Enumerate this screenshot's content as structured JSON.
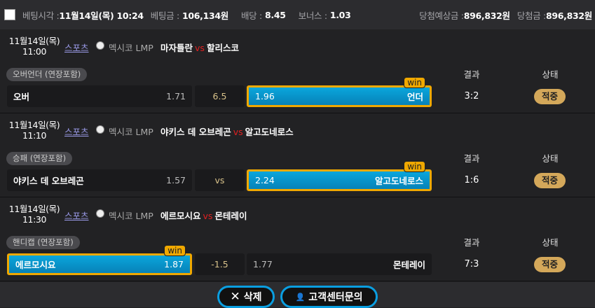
{
  "header": {
    "bet_time_label": "베팅시각 :",
    "bet_time": "11월14일(목) 10:24",
    "bet_amount_label": "베팅금 :",
    "bet_amount": "106,134원",
    "odds_label": "배당 :",
    "odds": "8.45",
    "bonus_label": "보너스 :",
    "bonus": "1.03",
    "expected_label": "당첨예상금 :",
    "expected": "896,832원",
    "won_label": "당첨금 :",
    "won": "896,832원"
  },
  "columns": {
    "result": "결과",
    "status": "상태"
  },
  "win_badge": "win",
  "bets": [
    {
      "date": "11월14일(목)",
      "time": "11:00",
      "sport": "스포츠",
      "league": "멕시코 LMP",
      "home": "마자틀란",
      "vs": "vs",
      "away": "할리스코",
      "market": "오버언더 (연장포함)",
      "left_name": "오버",
      "left_odds": "1.71",
      "middle": "6.5",
      "right_odds": "1.96",
      "right_name": "언더",
      "selected": "right",
      "result": "3:2",
      "status": "적중"
    },
    {
      "date": "11월14일(목)",
      "time": "11:10",
      "sport": "스포츠",
      "league": "멕시코 LMP",
      "home": "야키스 데 오브레곤",
      "vs": "vs",
      "away": "알고도네로스",
      "market": "승패 (연장포함)",
      "left_name": "야키스 데 오브레곤",
      "left_odds": "1.57",
      "middle": "vs",
      "right_odds": "2.24",
      "right_name": "알고도네로스",
      "selected": "right",
      "result": "1:6",
      "status": "적중"
    },
    {
      "date": "11월14일(목)",
      "time": "11:30",
      "sport": "스포츠",
      "league": "멕시코 LMP",
      "home": "에르모시요",
      "vs": "vs",
      "away": "몬테레이",
      "market": "핸디캡 (연장포함)",
      "left_name": "에르모시요",
      "left_odds": "1.87",
      "middle": "-1.5",
      "right_odds": "1.77",
      "right_name": "몬테레이",
      "selected": "left",
      "result": "7:3",
      "status": "적중"
    }
  ],
  "footer": {
    "delete": "삭제",
    "support": "고객센터문의"
  }
}
